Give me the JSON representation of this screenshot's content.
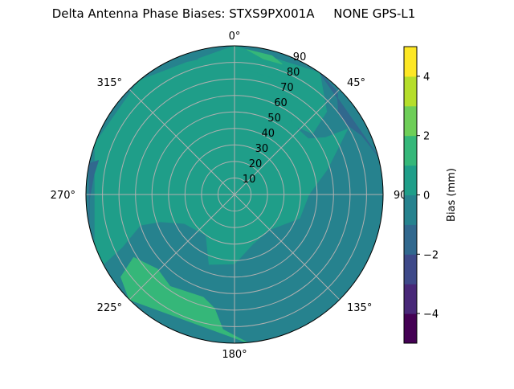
{
  "chart_data": {
    "type": "polar-contour",
    "title": "Delta Antenna Phase Biases: STXS9PX001A     NONE GPS-L1",
    "theta_direction": "clockwise",
    "theta_zero": "top",
    "theta_ticks": [
      {
        "angle": 0,
        "label": "0°"
      },
      {
        "angle": 45,
        "label": "45°"
      },
      {
        "angle": 90,
        "label": "90°"
      },
      {
        "angle": 135,
        "label": "135°"
      },
      {
        "angle": 180,
        "label": "180°"
      },
      {
        "angle": 225,
        "label": "225°"
      },
      {
        "angle": 270,
        "label": "270°"
      },
      {
        "angle": 315,
        "label": "315°"
      }
    ],
    "r_range": [
      0,
      90
    ],
    "r_ticks": [
      10,
      20,
      30,
      40,
      50,
      60,
      70,
      80,
      90
    ],
    "grid": true,
    "colorbar": {
      "label": "Bias (mm)",
      "range": [
        -5,
        5
      ],
      "levels": [
        -5,
        -4,
        -3,
        -2,
        -1,
        0,
        1,
        2,
        3,
        4,
        5
      ],
      "ticks": [
        -4,
        -2,
        0,
        2,
        4
      ],
      "tick_labels": [
        "−4",
        "−2",
        "0",
        "2",
        "4"
      ],
      "colors": [
        "#440154",
        "#482878",
        "#3e4989",
        "#31688e",
        "#26828e",
        "#1f9e89",
        "#35b779",
        "#6ece58",
        "#b5de2b",
        "#fde725"
      ]
    },
    "background_level": "-1 to 0",
    "regions": [
      {
        "level": "0 to 1",
        "points": [
          [
            250,
            90
          ],
          [
            290,
            90
          ],
          [
            320,
            90
          ],
          [
            340,
            85
          ],
          [
            355,
            85
          ],
          [
            10,
            82
          ],
          [
            30,
            80
          ],
          [
            35,
            72
          ],
          [
            38,
            62
          ],
          [
            44,
            55
          ],
          [
            53,
            56
          ],
          [
            58,
            65
          ],
          [
            60,
            79
          ],
          [
            75,
            58
          ],
          [
            90,
            45
          ],
          [
            110,
            42
          ],
          [
            135,
            30
          ],
          [
            160,
            32
          ],
          [
            180,
            42
          ],
          [
            200,
            45
          ],
          [
            215,
            30
          ],
          [
            240,
            35
          ],
          [
            250,
            48
          ],
          [
            252,
            60
          ],
          [
            245,
            75
          ],
          [
            242,
            90
          ]
        ]
      },
      {
        "level": "0 to 1",
        "points": [
          [
            0,
            90
          ],
          [
            35,
            90
          ],
          [
            48,
            75
          ],
          [
            52,
            60
          ],
          [
            40,
            55
          ],
          [
            18,
            74
          ],
          [
            0,
            78
          ],
          [
            345,
            85
          ]
        ]
      },
      {
        "level": "1 to 2",
        "points": [
          [
            5,
            88
          ],
          [
            15,
            87
          ],
          [
            20,
            84
          ],
          [
            12,
            84
          ]
        ]
      },
      {
        "level": "1 to 2",
        "points": [
          [
            175,
            90
          ],
          [
            225,
            90
          ],
          [
            234,
            85
          ],
          [
            238,
            72
          ],
          [
            226,
            65
          ],
          [
            215,
            68
          ],
          [
            197,
            65
          ],
          [
            190,
            70
          ],
          [
            185,
            82
          ]
        ]
      },
      {
        "level": "-2 to -1",
        "points": [
          [
            282,
            90
          ],
          [
            258,
            90
          ],
          [
            268,
            88
          ],
          [
            278,
            86
          ],
          [
            284,
            85
          ]
        ]
      },
      {
        "level": "-2 to -1",
        "points": [
          [
            35,
            90
          ],
          [
            75,
            90
          ],
          [
            65,
            85
          ],
          [
            58,
            80
          ],
          [
            52,
            80
          ],
          [
            45,
            88
          ]
        ]
      }
    ]
  }
}
